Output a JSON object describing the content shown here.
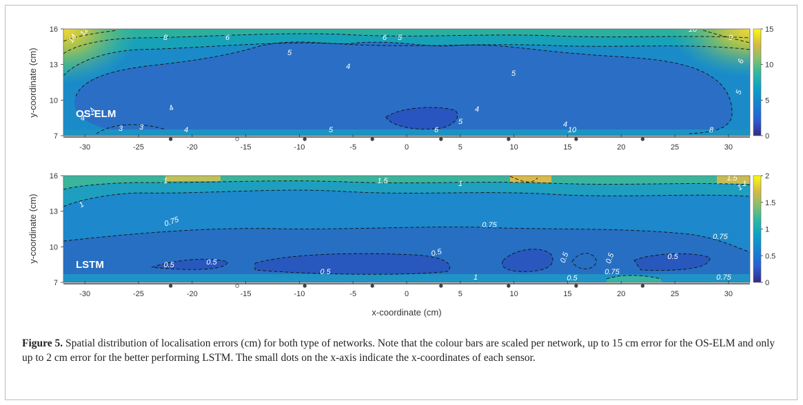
{
  "chart_data": [
    {
      "type": "heatmap",
      "panel_label": "OS-ELM",
      "xlabel": "",
      "ylabel": "y-coordinate (cm)",
      "xlim": [
        -32,
        32
      ],
      "ylim": [
        7,
        16
      ],
      "x_ticks": [
        -30,
        -25,
        -20,
        -15,
        -10,
        -5,
        0,
        5,
        10,
        15,
        20,
        25,
        30
      ],
      "y_ticks": [
        7,
        10,
        13,
        16
      ],
      "colorbar": {
        "min": 0,
        "max": 15,
        "ticks": [
          0,
          5,
          10,
          15
        ],
        "colormap": "parula"
      },
      "contour_labels": [
        "14",
        "12",
        "10",
        "8",
        "6",
        "5",
        "4",
        "4",
        "4",
        "3",
        "3",
        "4",
        "4",
        "5",
        "6",
        "5",
        "6",
        "5",
        "4",
        "5",
        "4",
        "10",
        "8",
        "10",
        "9",
        "6",
        "5"
      ],
      "sensor_x": [
        -22,
        -15.8,
        -9.5,
        -3.2,
        3.2,
        9.5,
        15.8,
        22
      ],
      "highlighted_sensor_x": -15.8
    },
    {
      "type": "heatmap",
      "panel_label": "LSTM",
      "xlabel": "x-coordinate (cm)",
      "ylabel": "y-coordinate (cm)",
      "xlim": [
        -32,
        32
      ],
      "ylim": [
        7,
        16
      ],
      "x_ticks": [
        -30,
        -25,
        -20,
        -15,
        -10,
        -5,
        0,
        5,
        10,
        15,
        20,
        25,
        30
      ],
      "y_ticks": [
        7,
        10,
        13,
        16
      ],
      "colorbar": {
        "min": 0,
        "max": 2,
        "ticks": [
          0,
          0.5,
          1,
          1.5,
          2
        ],
        "colormap": "parula"
      },
      "contour_labels": [
        "1",
        "1.5",
        "1",
        "1",
        "0.75",
        "0.75",
        "0.5",
        "0.5",
        "0.5",
        "0.5",
        "0.5",
        "0.5",
        "0.5",
        "0.75",
        "0.5",
        "0.75",
        "1",
        "1",
        "0.75",
        "1.5",
        "1"
      ],
      "sensor_x": [
        -22,
        -15.8,
        -9.5,
        -3.2,
        3.2,
        9.5,
        15.8,
        22
      ],
      "highlighted_sensor_x": -15.8
    }
  ],
  "caption": {
    "figure_label": "Figure 5.",
    "text": "Spatial distribution of localisation errors (cm) for both type of networks. Note that the colour bars are scaled per network, up to 15 cm error for the OS-ELM and only up to 2 cm error for the better performing LSTM. The small dots on the x-axis indicate the x-coordinates of each sensor."
  }
}
